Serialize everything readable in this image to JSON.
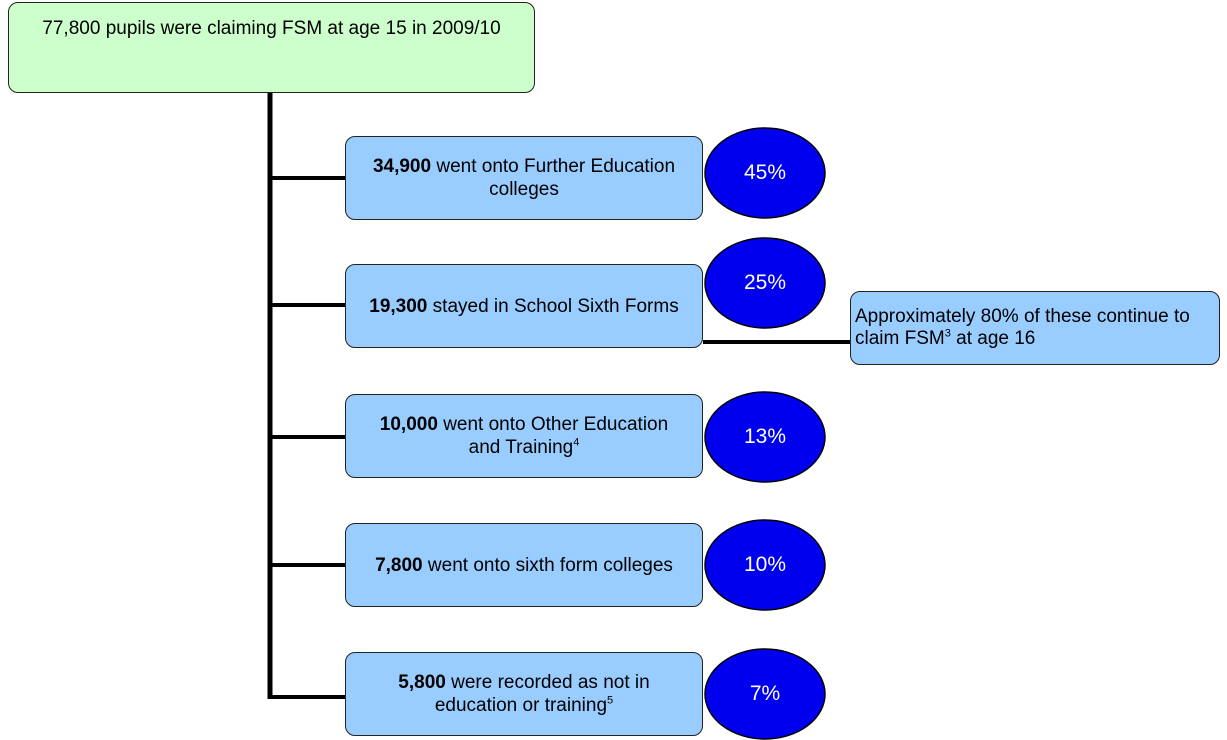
{
  "root": {
    "text": "77,800 pupils were claiming FSM at age 15 in 2009/10"
  },
  "nodes": [
    {
      "count": "34,900",
      "text": "went onto Further Education colleges",
      "percent": "45%"
    },
    {
      "count": "19,300",
      "text": "stayed in School Sixth Forms",
      "percent": "25%"
    },
    {
      "count": "10,000",
      "text": "went onto Other Education and Training",
      "footnote": "4",
      "percent": "13%"
    },
    {
      "count": "7,800",
      "text": "went onto sixth form colleges",
      "percent": "10%"
    },
    {
      "count": "5,800",
      "text": "were recorded as not in education or training",
      "footnote": "5",
      "percent": "7%"
    }
  ],
  "note": {
    "text_before": "Approximately 80% of these continue to claim FSM",
    "footnote": "3",
    "text_after": "at age 16"
  }
}
